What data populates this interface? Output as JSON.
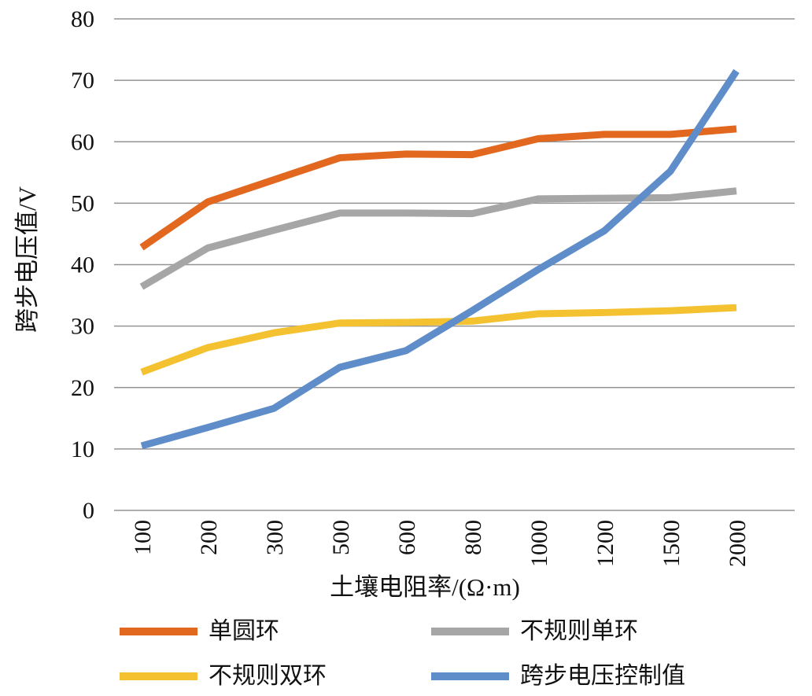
{
  "chart_data": {
    "type": "line",
    "categories": [
      "100",
      "200",
      "300",
      "500",
      "600",
      "800",
      "1000",
      "1200",
      "1500",
      "2000"
    ],
    "series": [
      {
        "name": "单圆环",
        "color": "#E2671F",
        "values": [
          42.8,
          50.2,
          53.8,
          57.4,
          58.0,
          57.9,
          60.5,
          61.2,
          61.2,
          62.1
        ]
      },
      {
        "name": "不规则单环",
        "color": "#A6A6A6",
        "values": [
          36.4,
          42.7,
          45.6,
          48.4,
          48.4,
          48.3,
          50.7,
          50.8,
          50.9,
          52.0
        ]
      },
      {
        "name": "不规则双环",
        "color": "#F4C230",
        "values": [
          22.5,
          26.5,
          28.9,
          30.5,
          30.6,
          30.8,
          32.0,
          32.2,
          32.5,
          33.0
        ]
      },
      {
        "name": "跨步电压控制值",
        "color": "#5F8DC9",
        "values": [
          10.5,
          13.5,
          16.6,
          23.3,
          26.0,
          32.5,
          39.2,
          45.5,
          55.2,
          71.5
        ]
      }
    ],
    "title": "",
    "xlabel": "土壤电阻率/(Ω·m)",
    "ylabel": "跨步电压值/V",
    "ylim": [
      0,
      80
    ],
    "ytick_step": 10,
    "yticks": [
      "0",
      "10",
      "20",
      "30",
      "40",
      "50",
      "60",
      "70",
      "80"
    ],
    "grid": true,
    "gridline_color": "#949494",
    "axis_text_color": "#111111",
    "legend_position": "bottom",
    "x_tick_rotation_deg": -90
  }
}
